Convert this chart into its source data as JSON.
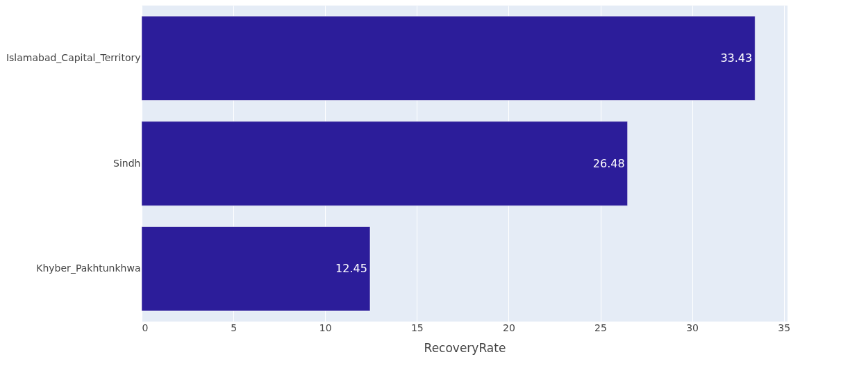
{
  "chart_data": {
    "type": "bar",
    "orientation": "horizontal",
    "categories": [
      "Islamabad_Capital_Territory",
      "Sindh",
      "Khyber_Pakhtunkhwa"
    ],
    "values": [
      33.43,
      26.48,
      12.45
    ],
    "color": "#2c1d9a",
    "xlabel": "RecoveryRate",
    "xlim": [
      0,
      35.2
    ],
    "xticks": [
      0,
      5,
      10,
      15,
      20,
      25,
      30,
      35
    ],
    "grid": "x",
    "data_labels": true
  }
}
